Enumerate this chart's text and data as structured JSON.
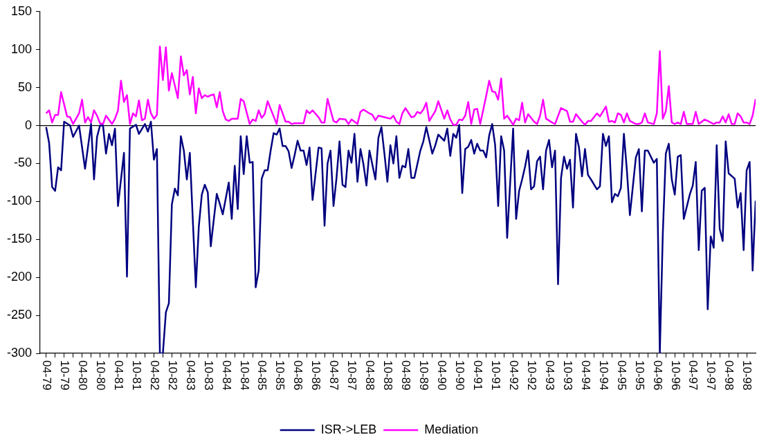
{
  "chart_data": {
    "type": "line",
    "legend": "bottom",
    "grid": false,
    "marker": "none",
    "line_style": "solid",
    "xlim": [
      "1979-02",
      "1999-01"
    ],
    "ylim": [
      -300,
      150
    ],
    "yticks": [
      -300,
      -250,
      -200,
      -150,
      -100,
      -50,
      0,
      50,
      100,
      150
    ],
    "xticks": [
      {
        "value": "1979-04",
        "label": "04-79"
      },
      {
        "value": "1979-07",
        "label": null
      },
      {
        "value": "1979-10",
        "label": "10-79"
      },
      {
        "value": "1980-01",
        "label": null
      },
      {
        "value": "1980-04",
        "label": "04-80"
      },
      {
        "value": "1980-07",
        "label": null
      },
      {
        "value": "1980-10",
        "label": "10-80"
      },
      {
        "value": "1981-01",
        "label": null
      },
      {
        "value": "1981-04",
        "label": "04-81"
      },
      {
        "value": "1981-07",
        "label": null
      },
      {
        "value": "1981-10",
        "label": "10-81"
      },
      {
        "value": "1982-01",
        "label": null
      },
      {
        "value": "1982-04",
        "label": "04-82"
      },
      {
        "value": "1982-07",
        "label": null
      },
      {
        "value": "1982-10",
        "label": "10-82"
      },
      {
        "value": "1983-01",
        "label": null
      },
      {
        "value": "1983-04",
        "label": "04-83"
      },
      {
        "value": "1983-07",
        "label": null
      },
      {
        "value": "1983-10",
        "label": "10-83"
      },
      {
        "value": "1984-01",
        "label": null
      },
      {
        "value": "1984-04",
        "label": "04-84"
      },
      {
        "value": "1984-07",
        "label": null
      },
      {
        "value": "1984-10",
        "label": "10-84"
      },
      {
        "value": "1985-01",
        "label": null
      },
      {
        "value": "1985-04",
        "label": "04-85"
      },
      {
        "value": "1985-07",
        "label": null
      },
      {
        "value": "1985-10",
        "label": "10-85"
      },
      {
        "value": "1986-01",
        "label": null
      },
      {
        "value": "1986-04",
        "label": "04-86"
      },
      {
        "value": "1986-07",
        "label": null
      },
      {
        "value": "1986-10",
        "label": "10-86"
      },
      {
        "value": "1987-01",
        "label": null
      },
      {
        "value": "1987-04",
        "label": "04-87"
      },
      {
        "value": "1987-07",
        "label": null
      },
      {
        "value": "1987-10",
        "label": "10-87"
      },
      {
        "value": "1988-01",
        "label": null
      },
      {
        "value": "1988-04",
        "label": "04-88"
      },
      {
        "value": "1988-07",
        "label": null
      },
      {
        "value": "1988-10",
        "label": "10-88"
      },
      {
        "value": "1989-01",
        "label": null
      },
      {
        "value": "1989-04",
        "label": "04-89"
      },
      {
        "value": "1989-07",
        "label": null
      },
      {
        "value": "1989-10",
        "label": "10-89"
      },
      {
        "value": "1990-01",
        "label": null
      },
      {
        "value": "1990-04",
        "label": "04-90"
      },
      {
        "value": "1990-07",
        "label": null
      },
      {
        "value": "1990-10",
        "label": "10-90"
      },
      {
        "value": "1991-01",
        "label": null
      },
      {
        "value": "1991-04",
        "label": "04-91"
      },
      {
        "value": "1991-07",
        "label": null
      },
      {
        "value": "1991-10",
        "label": "10-91"
      },
      {
        "value": "1992-01",
        "label": null
      },
      {
        "value": "1992-04",
        "label": "04-92"
      },
      {
        "value": "1992-07",
        "label": null
      },
      {
        "value": "1992-10",
        "label": "10-92"
      },
      {
        "value": "1993-01",
        "label": null
      },
      {
        "value": "1993-04",
        "label": "04-93"
      },
      {
        "value": "1993-07",
        "label": null
      },
      {
        "value": "1993-10",
        "label": "10-93"
      },
      {
        "value": "1994-01",
        "label": null
      },
      {
        "value": "1994-04",
        "label": "04-94"
      },
      {
        "value": "1994-07",
        "label": null
      },
      {
        "value": "1994-10",
        "label": "10-94"
      },
      {
        "value": "1995-01",
        "label": null
      },
      {
        "value": "1995-04",
        "label": "04-95"
      },
      {
        "value": "1995-07",
        "label": null
      },
      {
        "value": "1995-10",
        "label": "10-95"
      },
      {
        "value": "1996-01",
        "label": null
      },
      {
        "value": "1996-04",
        "label": "04-96"
      },
      {
        "value": "1996-07",
        "label": null
      },
      {
        "value": "1996-10",
        "label": "10-96"
      },
      {
        "value": "1997-01",
        "label": null
      },
      {
        "value": "1997-04",
        "label": "04-97"
      },
      {
        "value": "1997-07",
        "label": null
      },
      {
        "value": "1997-10",
        "label": "10-97"
      },
      {
        "value": "1998-01",
        "label": null
      },
      {
        "value": "1998-04",
        "label": "04-98"
      },
      {
        "value": "1998-07",
        "label": null
      },
      {
        "value": "1998-10",
        "label": "10-98"
      }
    ],
    "ref_lines": [
      {
        "axis": "y",
        "value": 0,
        "color": "#000000"
      }
    ],
    "series": [
      {
        "name": "ISR->LEB",
        "color": "#000080",
        "x": [
          "1979-04",
          "1979-05",
          "1979-06",
          "1979-07",
          "1979-08",
          "1979-09",
          "1979-10",
          "1979-12",
          "1980-01",
          "1980-03",
          "1980-05",
          "1980-07",
          "1980-08",
          "1980-09",
          "1980-10",
          "1980-11",
          "1980-12",
          "1981-01",
          "1981-02",
          "1981-03",
          "1981-04",
          "1981-06",
          "1981-07",
          "1981-08",
          "1981-10",
          "1981-11",
          "1982-01",
          "1982-02",
          "1982-03",
          "1982-04",
          "1982-05",
          "1982-06",
          "1982-07",
          "1982-08",
          "1982-09",
          "1982-10",
          "1982-11",
          "1982-12",
          "1983-01",
          "1983-02",
          "1983-03",
          "1983-04",
          "1983-06",
          "1983-07",
          "1983-08",
          "1983-09",
          "1983-10",
          "1983-11",
          "1983-12",
          "1984-01",
          "1984-02",
          "1984-03",
          "1984-05",
          "1984-06",
          "1984-07",
          "1984-08",
          "1984-09",
          "1984-10",
          "1984-11",
          "1984-12",
          "1985-01",
          "1985-02",
          "1985-03",
          "1985-04",
          "1985-05",
          "1985-06",
          "1985-07",
          "1985-08",
          "1985-09",
          "1985-10",
          "1985-11",
          "1985-12",
          "1986-01",
          "1986-02",
          "1986-03",
          "1986-04",
          "1986-05",
          "1986-06",
          "1986-07",
          "1986-08",
          "1986-09",
          "1986-11",
          "1986-12",
          "1987-01",
          "1987-02",
          "1987-03",
          "1987-04",
          "1987-05",
          "1987-06",
          "1987-07",
          "1987-08",
          "1987-09",
          "1987-10",
          "1987-11",
          "1987-12",
          "1988-01",
          "1988-02",
          "1988-03",
          "1988-04",
          "1988-06",
          "1988-07",
          "1988-08",
          "1988-09",
          "1988-10",
          "1988-11",
          "1988-12",
          "1989-01",
          "1989-02",
          "1989-03",
          "1989-04",
          "1989-05",
          "1989-06",
          "1989-07",
          "1989-09",
          "1989-10",
          "1989-11",
          "1990-01",
          "1990-02",
          "1990-03",
          "1990-05",
          "1990-06",
          "1990-07",
          "1990-08",
          "1990-09",
          "1990-10",
          "1990-11",
          "1990-12",
          "1991-01",
          "1991-02",
          "1991-03",
          "1991-04",
          "1991-05",
          "1991-06",
          "1991-07",
          "1991-08",
          "1991-09",
          "1991-10",
          "1991-11",
          "1991-12",
          "1992-01",
          "1992-02",
          "1992-04",
          "1992-05",
          "1992-06",
          "1992-07",
          "1992-08",
          "1992-09",
          "1992-10",
          "1992-11",
          "1992-12",
          "1993-01",
          "1993-02",
          "1993-03",
          "1993-04",
          "1993-05",
          "1993-06",
          "1993-07",
          "1993-08",
          "1993-09",
          "1993-10",
          "1993-11",
          "1993-12",
          "1994-01",
          "1994-02",
          "1994-03",
          "1994-04",
          "1994-05",
          "1994-06",
          "1994-08",
          "1994-09",
          "1994-10",
          "1994-11",
          "1994-12",
          "1995-01",
          "1995-02",
          "1995-03",
          "1995-04",
          "1995-05",
          "1995-06",
          "1995-07",
          "1995-09",
          "1995-10",
          "1995-11",
          "1995-12",
          "1996-01",
          "1996-03",
          "1996-04",
          "1996-05",
          "1996-06",
          "1996-07",
          "1996-08",
          "1996-09",
          "1996-10",
          "1996-11",
          "1996-12",
          "1997-01",
          "1997-03",
          "1997-04",
          "1997-05",
          "1997-06",
          "1997-07",
          "1997-08",
          "1997-09",
          "1997-10",
          "1997-11",
          "1997-12",
          "1998-01",
          "1998-02",
          "1998-03",
          "1998-04",
          "1998-06",
          "1998-07",
          "1998-08",
          "1998-09",
          "1998-10",
          "1998-11",
          "1998-12",
          "1999-01"
        ],
        "values": [
          -2,
          -23,
          -81,
          -86,
          -55,
          -59,
          5,
          0,
          -15,
          0,
          -57,
          2,
          -71,
          -15,
          0,
          0,
          -37,
          -11,
          -26,
          -4,
          -106,
          -36,
          -199,
          -4,
          1,
          -11,
          2,
          -8,
          5,
          -45,
          -31,
          -300,
          -300,
          -246,
          -234,
          -104,
          -83,
          -92,
          -14,
          -33,
          -71,
          -36,
          -213,
          -133,
          -91,
          -78,
          -88,
          -159,
          -124,
          -90,
          -103,
          -117,
          -75,
          -123,
          -53,
          -110,
          -14,
          -64,
          -14,
          -49,
          -48,
          -213,
          -191,
          -70,
          -59,
          -59,
          -33,
          -10,
          -12,
          -4,
          -27,
          -27,
          -34,
          -56,
          -39,
          -20,
          -33,
          -33,
          -52,
          -29,
          -98,
          -29,
          -30,
          -132,
          -50,
          -33,
          -106,
          -69,
          -21,
          -78,
          -81,
          -33,
          -49,
          -11,
          -74,
          -31,
          -51,
          -79,
          -33,
          -71,
          -16,
          -2,
          -37,
          -74,
          -26,
          -50,
          -14,
          -69,
          -53,
          -55,
          -31,
          -69,
          -69,
          -33,
          -21,
          -2,
          -37,
          -26,
          -12,
          -20,
          -4,
          -40,
          -11,
          -16,
          1,
          -89,
          -31,
          -28,
          -19,
          -37,
          -24,
          -33,
          -33,
          -42,
          -13,
          2,
          -26,
          -106,
          -14,
          -33,
          -148,
          -4,
          -123,
          -86,
          -71,
          -54,
          -33,
          -84,
          -80,
          -47,
          -41,
          -84,
          -33,
          -19,
          -55,
          -33,
          -209,
          -69,
          -41,
          -57,
          -45,
          -108,
          -11,
          -29,
          -67,
          -31,
          -65,
          -71,
          -84,
          -80,
          -11,
          -27,
          -14,
          -101,
          -90,
          -93,
          -82,
          -11,
          -59,
          -118,
          -42,
          -31,
          -113,
          -33,
          -33,
          -49,
          -44,
          -300,
          -142,
          -37,
          -24,
          -71,
          -91,
          -41,
          -39,
          -123,
          -91,
          -79,
          -48,
          -164,
          -86,
          -82,
          -242,
          -146,
          -161,
          -26,
          -136,
          -152,
          -21,
          -63,
          -70,
          -108,
          -89,
          -164,
          -59,
          -48,
          -191,
          -99
        ]
      },
      {
        "name": "Mediation",
        "color": "#ff00ff",
        "x": [
          "1979-04",
          "1979-05",
          "1979-06",
          "1979-07",
          "1979-08",
          "1979-09",
          "1979-11",
          "1979-12",
          "1980-01",
          "1980-03",
          "1980-04",
          "1980-05",
          "1980-06",
          "1980-07",
          "1980-08",
          "1980-09",
          "1980-10",
          "1980-11",
          "1980-12",
          "1981-02",
          "1981-03",
          "1981-04",
          "1981-05",
          "1981-06",
          "1981-07",
          "1981-08",
          "1981-09",
          "1981-10",
          "1981-11",
          "1981-12",
          "1982-01",
          "1982-02",
          "1982-03",
          "1982-04",
          "1982-05",
          "1982-06",
          "1982-07",
          "1982-08",
          "1982-09",
          "1982-10",
          "1982-12",
          "1983-01",
          "1983-02",
          "1983-03",
          "1983-04",
          "1983-05",
          "1983-06",
          "1983-07",
          "1983-08",
          "1983-09",
          "1983-10",
          "1983-11",
          "1983-12",
          "1984-01",
          "1984-02",
          "1984-03",
          "1984-04",
          "1984-05",
          "1984-06",
          "1984-08",
          "1984-09",
          "1984-10",
          "1984-12",
          "1985-01",
          "1985-02",
          "1985-03",
          "1985-04",
          "1985-05",
          "1985-06",
          "1985-09",
          "1985-10",
          "1985-11",
          "1985-12",
          "1986-01",
          "1986-02",
          "1986-03",
          "1986-06",
          "1986-07",
          "1986-08",
          "1986-09",
          "1986-11",
          "1986-12",
          "1987-01",
          "1987-02",
          "1987-04",
          "1987-05",
          "1987-06",
          "1987-08",
          "1987-09",
          "1987-10",
          "1987-12",
          "1988-01",
          "1988-02",
          "1988-04",
          "1988-05",
          "1988-06",
          "1988-07",
          "1988-09",
          "1988-11",
          "1988-12",
          "1989-01",
          "1989-02",
          "1989-03",
          "1989-04",
          "1989-06",
          "1989-07",
          "1989-08",
          "1989-09",
          "1989-10",
          "1989-11",
          "1989-12",
          "1990-02",
          "1990-03",
          "1990-05",
          "1990-06",
          "1990-07",
          "1990-08",
          "1990-09",
          "1990-10",
          "1990-11",
          "1990-12",
          "1991-01",
          "1991-02",
          "1991-03",
          "1991-04",
          "1991-05",
          "1991-07",
          "1991-08",
          "1991-09",
          "1991-10",
          "1991-11",
          "1991-12",
          "1992-01",
          "1992-02",
          "1992-04",
          "1992-05",
          "1992-06",
          "1992-07",
          "1992-08",
          "1992-09",
          "1992-11",
          "1992-12",
          "1993-01",
          "1993-02",
          "1993-03",
          "1993-05",
          "1993-06",
          "1993-08",
          "1993-10",
          "1993-11",
          "1993-12",
          "1994-01",
          "1994-03",
          "1994-04",
          "1994-05",
          "1994-06",
          "1994-08",
          "1994-09",
          "1994-11",
          "1994-12",
          "1995-01",
          "1995-02",
          "1995-03",
          "1995-04",
          "1995-05",
          "1995-06",
          "1995-07",
          "1995-09",
          "1995-10",
          "1995-11",
          "1995-12",
          "1996-01",
          "1996-03",
          "1996-04",
          "1996-05",
          "1996-06",
          "1996-07",
          "1996-08",
          "1996-09",
          "1996-10",
          "1996-11",
          "1996-12",
          "1997-01",
          "1997-02",
          "1997-04",
          "1997-05",
          "1997-06",
          "1997-08",
          "1997-09",
          "1997-11",
          "1997-12",
          "1998-01",
          "1998-02",
          "1998-03",
          "1998-04",
          "1998-05",
          "1998-06",
          "1998-07",
          "1998-08",
          "1998-09",
          "1998-10",
          "1998-11",
          "1998-12",
          "1999-01"
        ],
        "values": [
          16,
          20,
          4,
          14,
          14,
          44,
          12,
          11,
          2,
          16,
          34,
          4,
          11,
          4,
          20,
          13,
          3,
          2,
          13,
          2,
          9,
          20,
          59,
          31,
          40,
          2,
          16,
          12,
          33,
          7,
          9,
          34,
          16,
          9,
          14,
          104,
          60,
          103,
          46,
          69,
          36,
          91,
          66,
          73,
          41,
          64,
          16,
          49,
          36,
          40,
          38,
          40,
          41,
          24,
          44,
          19,
          8,
          6,
          9,
          9,
          35,
          32,
          2,
          8,
          6,
          20,
          10,
          15,
          32,
          2,
          27,
          16,
          5,
          5,
          2,
          3,
          3,
          20,
          16,
          20,
          11,
          4,
          4,
          35,
          6,
          4,
          9,
          8,
          2,
          8,
          2,
          18,
          21,
          16,
          14,
          7,
          13,
          11,
          9,
          13,
          5,
          2,
          16,
          23,
          11,
          12,
          18,
          16,
          21,
          30,
          6,
          19,
          32,
          9,
          20,
          8,
          1,
          1,
          8,
          7,
          13,
          31,
          2,
          21,
          22,
          2,
          39,
          59,
          45,
          44,
          34,
          62,
          9,
          13,
          1,
          9,
          7,
          30,
          4,
          15,
          5,
          2,
          13,
          34,
          9,
          4,
          2,
          23,
          19,
          5,
          5,
          15,
          5,
          1,
          6,
          6,
          16,
          12,
          25,
          5,
          6,
          4,
          16,
          14,
          4,
          16,
          6,
          2,
          2,
          4,
          16,
          4,
          2,
          16,
          98,
          9,
          19,
          52,
          4,
          2,
          4,
          2,
          18,
          2,
          2,
          18,
          2,
          8,
          6,
          2,
          4,
          4,
          12,
          4,
          15,
          2,
          2,
          16,
          12,
          4,
          4,
          2,
          13,
          35
        ]
      }
    ]
  }
}
